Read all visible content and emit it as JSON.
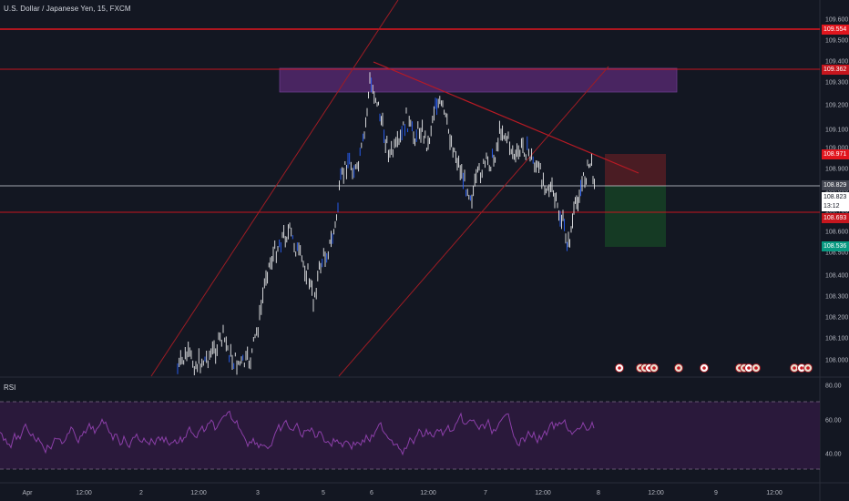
{
  "header": {
    "symbol_title": "U.S. Dollar / Japanese Yen, 15, FXCM"
  },
  "rsi": {
    "label": "RSI",
    "ticks": [
      "80.00",
      "60.00",
      "40.00"
    ]
  },
  "price_axis": {
    "ticks": [
      "109.600",
      "109.500",
      "109.400",
      "109.300",
      "109.200",
      "109.100",
      "109.000",
      "108.900",
      "108.800",
      "108.700",
      "108.600",
      "108.500",
      "108.400",
      "108.300",
      "108.200",
      "108.100",
      "108.000"
    ],
    "labels": {
      "resistance_top": "109.554",
      "resistance_zone": "109.362",
      "stop_loss": "108.971",
      "entry": "108.829",
      "current": "108.823",
      "countdown": "13:12",
      "support": "108.693",
      "take_profit": "108.536"
    }
  },
  "time_axis": {
    "ticks": [
      "Apr",
      "12:00",
      "2",
      "12:00",
      "3",
      "5",
      "6",
      "12:00",
      "7",
      "12:00",
      "8",
      "12:00",
      "9",
      "12:00"
    ]
  },
  "colors": {
    "background": "#131722",
    "candle": "#e9eaec",
    "candle_blue": "#2962ff",
    "resistance": "#e1161e",
    "rsi_line": "#8b3fa8",
    "rsi_band": "#3a1f4f",
    "zone": "#6a2a8a",
    "stop_zone": "#4a1c23",
    "profit_zone": "#173a26"
  },
  "event_icons": [
    "flag-icon",
    "flag-icon",
    "flag-icon",
    "flag-icon",
    "flag-icon",
    "flag-icon",
    "flag-icon",
    "flag-icon",
    "flag-icon",
    "flag-icon",
    "flag-icon",
    "flag-icon",
    "flag-icon"
  ]
}
